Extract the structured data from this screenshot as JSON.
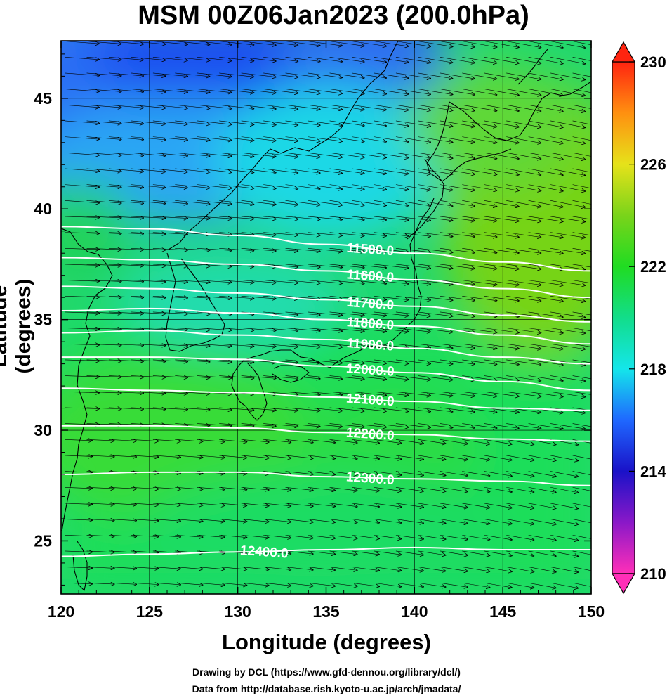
{
  "title": "MSM 00Z06Jan2023 (200.0hPa)",
  "credits": {
    "line1": "Drawing by DCL (https://www.gfd-dennou.org/library/dcl/)",
    "line2": "Data from http://database.rish.kyoto-u.ac.jp/arch/jmadata/"
  },
  "chart_data": {
    "type": "heatmap",
    "title": "MSM 00Z06Jan2023 (200.0hPa)",
    "xlabel": "Longitude (degrees)",
    "ylabel": "Latitude  (degrees)",
    "xlim": [
      120,
      150
    ],
    "ylim": [
      22.6,
      47.6
    ],
    "xticks": [
      "120",
      "125",
      "130",
      "135",
      "140",
      "145",
      "150"
    ],
    "yticks": [
      "25",
      "30",
      "35",
      "40",
      "45"
    ],
    "grid": true,
    "shaded_variable_colorbar": {
      "range": [
        210,
        230
      ],
      "tick_labels": [
        "230",
        "226",
        "222",
        "218",
        "214",
        "210"
      ],
      "stops": [
        {
          "value": 210,
          "color": "#ff2fb8"
        },
        {
          "value": 212,
          "color": "#8a18c8"
        },
        {
          "value": 214,
          "color": "#1a12c8"
        },
        {
          "value": 216,
          "color": "#1f68ff"
        },
        {
          "value": 218,
          "color": "#14e6ea"
        },
        {
          "value": 220,
          "color": "#12dd8a"
        },
        {
          "value": 222,
          "color": "#20dc22"
        },
        {
          "value": 224,
          "color": "#7ad41a"
        },
        {
          "value": 226,
          "color": "#e6e21a"
        },
        {
          "value": 228,
          "color": "#ff9010"
        },
        {
          "value": 230,
          "color": "#ff2410"
        }
      ]
    },
    "contours": [
      {
        "label": "11500.0",
        "lat": [
          39.2,
          39.1,
          38.8,
          38.4,
          38.0,
          37.6,
          37.2
        ]
      },
      {
        "label": "11600.0",
        "lat": [
          37.8,
          37.7,
          37.5,
          37.2,
          36.8,
          36.4,
          36.0
        ]
      },
      {
        "label": "11700.0",
        "lat": [
          36.5,
          36.4,
          36.2,
          35.9,
          35.6,
          35.2,
          34.9
        ]
      },
      {
        "label": "11800.0",
        "lat": [
          35.4,
          35.5,
          35.3,
          35.0,
          34.7,
          34.3,
          33.9
        ]
      },
      {
        "label": "11900.0",
        "lat": [
          34.4,
          34.5,
          34.3,
          34.1,
          33.7,
          33.3,
          33.0
        ]
      },
      {
        "label": "12000.0",
        "lat": [
          33.3,
          33.3,
          33.2,
          32.9,
          32.6,
          32.2,
          31.8
        ]
      },
      {
        "label": "12100.0",
        "lat": [
          31.9,
          31.8,
          31.7,
          31.5,
          31.3,
          31.0,
          30.9
        ]
      },
      {
        "label": "12200.0",
        "lat": [
          30.2,
          30.2,
          30.1,
          29.9,
          29.8,
          29.6,
          29.5
        ]
      },
      {
        "label": "12300.0",
        "lat": [
          28.0,
          28.1,
          28.1,
          27.9,
          27.8,
          27.7,
          27.5
        ]
      },
      {
        "label": "12400.0",
        "lat": [
          24.3,
          24.4,
          24.5,
          24.6,
          24.7,
          24.6,
          24.6
        ]
      }
    ]
  }
}
